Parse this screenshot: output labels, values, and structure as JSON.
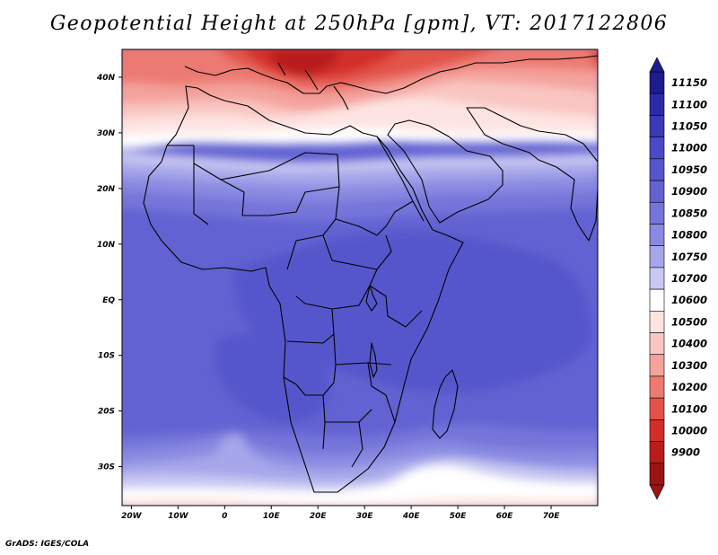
{
  "title": "Geopotential Height at 250hPa [gpm], VT: 2017122806",
  "credit": "GrADS: IGES/COLA",
  "map": {
    "lon_range": [
      -22,
      80
    ],
    "lat_range": [
      -37,
      45
    ],
    "y_ticks": [
      {
        "lat": 40,
        "label": "40N"
      },
      {
        "lat": 30,
        "label": "30N"
      },
      {
        "lat": 20,
        "label": "20N"
      },
      {
        "lat": 10,
        "label": "10N"
      },
      {
        "lat": 0,
        "label": "EQ"
      },
      {
        "lat": -10,
        "label": "10S"
      },
      {
        "lat": -20,
        "label": "20S"
      },
      {
        "lat": -30,
        "label": "30S"
      }
    ],
    "x_ticks": [
      {
        "lon": -20,
        "label": "20W"
      },
      {
        "lon": -10,
        "label": "10W"
      },
      {
        "lon": 0,
        "label": "0"
      },
      {
        "lon": 10,
        "label": "10E"
      },
      {
        "lon": 20,
        "label": "20E"
      },
      {
        "lon": 30,
        "label": "30E"
      },
      {
        "lon": 40,
        "label": "40E"
      },
      {
        "lon": 50,
        "label": "50E"
      },
      {
        "lon": 60,
        "label": "60E"
      },
      {
        "lon": 70,
        "label": "70E"
      }
    ]
  },
  "colorbar": {
    "labels": [
      "11150",
      "11100",
      "11050",
      "11000",
      "10950",
      "10900",
      "10850",
      "10800",
      "10750",
      "10700",
      "10600",
      "10500",
      "10400",
      "10300",
      "10200",
      "10100",
      "10000",
      "9900"
    ],
    "colors": [
      "#1c1c8c",
      "#2b2ba8",
      "#3a3ab8",
      "#4a4ac6",
      "#5656cc",
      "#6262d2",
      "#7474da",
      "#8a8ae2",
      "#a6a6ea",
      "#c8c8f2",
      "#ffffff",
      "#fde4e2",
      "#f9c6c2",
      "#f4a29c",
      "#ec7a72",
      "#e2524a",
      "#d42e2a",
      "#b81c1c",
      "#9a1414"
    ]
  }
}
